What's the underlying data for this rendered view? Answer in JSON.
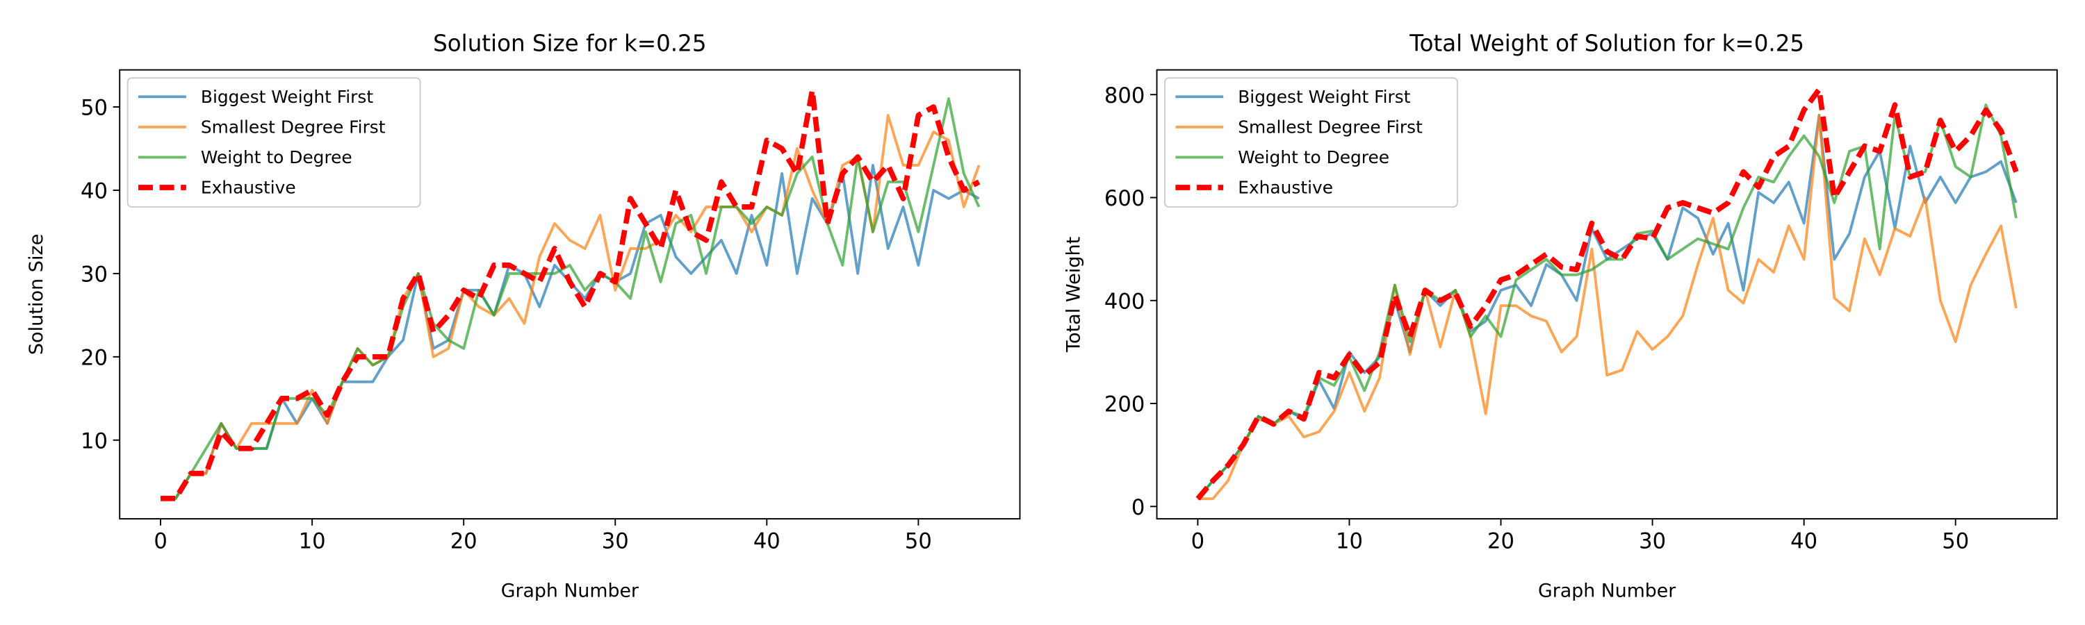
{
  "chart_data": [
    {
      "type": "line",
      "title": "Solution Size for k=0.25",
      "xlabel": "Graph Number",
      "ylabel": "Solution Size",
      "x": [
        0,
        1,
        2,
        3,
        4,
        5,
        6,
        7,
        8,
        9,
        10,
        11,
        12,
        13,
        14,
        15,
        16,
        17,
        18,
        19,
        20,
        21,
        22,
        23,
        24,
        25,
        26,
        27,
        28,
        29,
        30,
        31,
        32,
        33,
        34,
        35,
        36,
        37,
        38,
        39,
        40,
        41,
        42,
        43,
        44,
        45,
        46,
        47,
        48,
        49,
        50,
        51,
        52,
        53,
        54
      ],
      "xlim": [
        -2.7,
        56.7
      ],
      "xticks": [
        0,
        10,
        20,
        30,
        40,
        50
      ],
      "ylim": [
        0.55,
        54.45
      ],
      "yticks": [
        10,
        20,
        30,
        40,
        50
      ],
      "legend": "upper left",
      "series": [
        {
          "name": "Biggest Weight First",
          "color": "#1f77b4",
          "values": [
            3,
            3,
            6,
            6,
            12,
            9,
            9,
            9,
            15,
            12,
            15,
            12,
            17,
            17,
            17,
            20,
            22,
            30,
            21,
            22,
            28,
            28,
            25,
            31,
            30,
            26,
            31,
            29,
            27,
            30,
            29,
            30,
            36,
            37,
            32,
            30,
            32,
            34,
            30,
            37,
            31,
            42,
            30,
            39,
            36,
            42,
            30,
            43,
            33,
            38,
            31,
            40,
            39,
            40,
            39
          ]
        },
        {
          "name": "Smallest Degree First",
          "color": "#ff7f0e",
          "values": [
            3,
            3,
            6,
            6,
            12,
            9,
            12,
            12,
            12,
            12,
            16,
            12,
            17,
            21,
            19,
            20,
            27,
            30,
            20,
            21,
            28,
            26,
            25,
            27,
            24,
            32,
            36,
            34,
            33,
            37,
            28,
            33,
            33,
            34,
            37,
            35,
            38,
            38,
            38,
            35,
            38,
            37,
            45,
            40,
            36,
            43,
            44,
            35,
            49,
            43,
            43,
            47,
            46,
            38,
            43
          ]
        },
        {
          "name": "Weight to Degree",
          "color": "#2ca02c",
          "values": [
            3,
            3,
            6,
            9,
            12,
            9,
            9,
            9,
            15,
            15,
            15,
            13,
            17,
            21,
            19,
            20,
            26,
            30,
            24,
            22,
            21,
            28,
            25,
            30,
            30,
            30,
            30,
            31,
            28,
            30,
            29,
            27,
            35,
            29,
            36,
            37,
            30,
            38,
            38,
            36,
            38,
            37,
            42,
            44,
            36,
            31,
            44,
            35,
            41,
            41,
            35,
            43,
            51,
            42,
            38
          ]
        },
        {
          "name": "Exhaustive",
          "color": "#ff0000",
          "dashed": true,
          "values": [
            3,
            3,
            6,
            6,
            11,
            9,
            9,
            12,
            15,
            15,
            16,
            13,
            17,
            20,
            20,
            20,
            27,
            30,
            23,
            25,
            28,
            27,
            31,
            31,
            30,
            29,
            33,
            29,
            26,
            30,
            29,
            39,
            36,
            33,
            40,
            35,
            34,
            41,
            38,
            38,
            46,
            45,
            42,
            52,
            36,
            42,
            44,
            41,
            43,
            39,
            49,
            50,
            44,
            40,
            41
          ]
        }
      ]
    },
    {
      "type": "line",
      "title": "Total Weight of Solution for k=0.25",
      "xlabel": "Graph Number",
      "ylabel": "Total Weight",
      "x": [
        0,
        1,
        2,
        3,
        4,
        5,
        6,
        7,
        8,
        9,
        10,
        11,
        12,
        13,
        14,
        15,
        16,
        17,
        18,
        19,
        20,
        21,
        22,
        23,
        24,
        25,
        26,
        27,
        28,
        29,
        30,
        31,
        32,
        33,
        34,
        35,
        36,
        37,
        38,
        39,
        40,
        41,
        42,
        43,
        44,
        45,
        46,
        47,
        48,
        49,
        50,
        51,
        52,
        53,
        54
      ],
      "xlim": [
        -2.7,
        56.7
      ],
      "xticks": [
        0,
        10,
        20,
        30,
        40,
        50
      ],
      "ylim": [
        -24,
        848
      ],
      "yticks": [
        0,
        200,
        400,
        600,
        800
      ],
      "legend": "upper left",
      "series": [
        {
          "name": "Biggest Weight First",
          "color": "#1f77b4",
          "values": [
            15,
            50,
            80,
            120,
            175,
            160,
            185,
            170,
            245,
            190,
            300,
            260,
            290,
            400,
            300,
            420,
            390,
            420,
            340,
            360,
            420,
            430,
            390,
            470,
            450,
            400,
            540,
            480,
            500,
            520,
            530,
            480,
            580,
            560,
            490,
            550,
            420,
            610,
            590,
            630,
            550,
            760,
            480,
            530,
            640,
            690,
            540,
            700,
            590,
            640,
            590,
            640,
            650,
            670,
            590
          ]
        },
        {
          "name": "Smallest Degree First",
          "color": "#ff7f0e",
          "values": [
            15,
            15,
            50,
            120,
            170,
            160,
            175,
            135,
            145,
            185,
            260,
            185,
            250,
            430,
            295,
            420,
            310,
            420,
            330,
            180,
            390,
            390,
            370,
            360,
            300,
            330,
            500,
            255,
            265,
            340,
            305,
            330,
            370,
            470,
            560,
            420,
            395,
            480,
            455,
            545,
            480,
            760,
            405,
            380,
            520,
            450,
            540,
            525,
            600,
            400,
            320,
            430,
            490,
            545,
            385
          ]
        },
        {
          "name": "Weight to Degree",
          "color": "#2ca02c",
          "values": [
            15,
            50,
            80,
            120,
            175,
            160,
            185,
            175,
            250,
            235,
            290,
            225,
            300,
            430,
            320,
            420,
            400,
            420,
            330,
            370,
            330,
            440,
            460,
            480,
            450,
            450,
            460,
            480,
            480,
            530,
            535,
            480,
            500,
            520,
            510,
            500,
            580,
            640,
            630,
            680,
            720,
            680,
            590,
            690,
            700,
            500,
            760,
            640,
            650,
            750,
            660,
            640,
            780,
            720,
            560
          ]
        },
        {
          "name": "Exhaustive",
          "color": "#ff0000",
          "dashed": true,
          "values": [
            15,
            50,
            80,
            120,
            175,
            160,
            185,
            170,
            260,
            250,
            295,
            255,
            280,
            410,
            330,
            420,
            400,
            415,
            350,
            390,
            440,
            450,
            470,
            490,
            465,
            460,
            550,
            495,
            480,
            525,
            520,
            580,
            590,
            580,
            570,
            590,
            650,
            620,
            680,
            700,
            770,
            810,
            600,
            650,
            700,
            690,
            780,
            640,
            650,
            750,
            690,
            720,
            770,
            730,
            650
          ]
        }
      ]
    }
  ]
}
